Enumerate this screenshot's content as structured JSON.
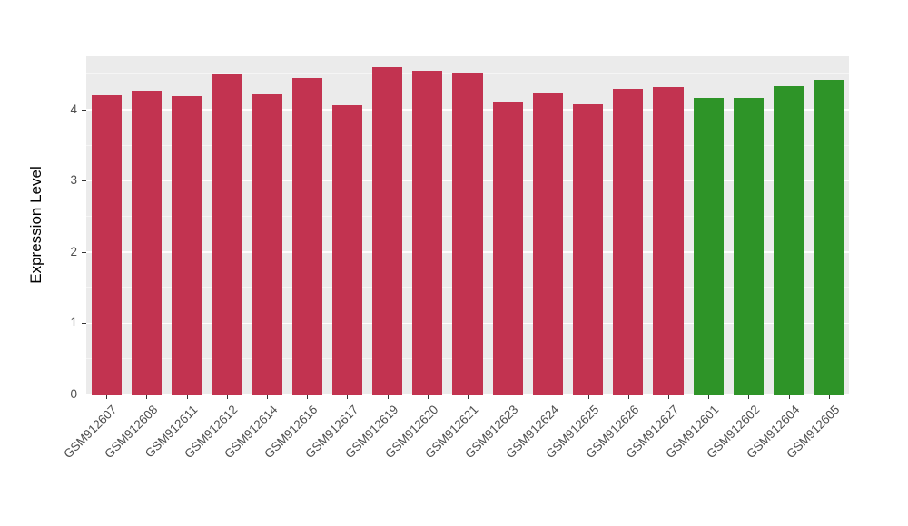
{
  "chart_data": {
    "type": "bar",
    "title": "",
    "xlabel": "",
    "ylabel": "Expression Level",
    "ylim": [
      0,
      4.75
    ],
    "yticks": [
      0,
      1,
      2,
      3,
      4
    ],
    "yticks_minor": [
      0.5,
      1.5,
      2.5,
      3.5,
      4.5
    ],
    "grid": "on",
    "legend_position": "none",
    "categories": [
      "GSM912607",
      "GSM912608",
      "GSM912611",
      "GSM912612",
      "GSM912614",
      "GSM912616",
      "GSM912617",
      "GSM912619",
      "GSM912620",
      "GSM912621",
      "GSM912623",
      "GSM912624",
      "GSM912625",
      "GSM912626",
      "GSM912627",
      "GSM912601",
      "GSM912602",
      "GSM912604",
      "GSM912605"
    ],
    "values": [
      4.2,
      4.27,
      4.19,
      4.49,
      4.21,
      4.44,
      4.06,
      4.6,
      4.55,
      4.52,
      4.1,
      4.24,
      4.07,
      4.29,
      4.32,
      4.17,
      4.16,
      4.33,
      4.42
    ],
    "groups": [
      "red",
      "red",
      "red",
      "red",
      "red",
      "red",
      "red",
      "red",
      "red",
      "red",
      "red",
      "red",
      "red",
      "red",
      "red",
      "green",
      "green",
      "green",
      "green"
    ],
    "colors": {
      "red": "#C23350",
      "green": "#2E9428"
    },
    "panel_background": "#EBEBEB",
    "grid_major_color": "#FFFFFF",
    "grid_minor_color": "#F5F5F5",
    "axis_text_color": "#4D4D4D",
    "tick_mark_color": "#333333"
  }
}
